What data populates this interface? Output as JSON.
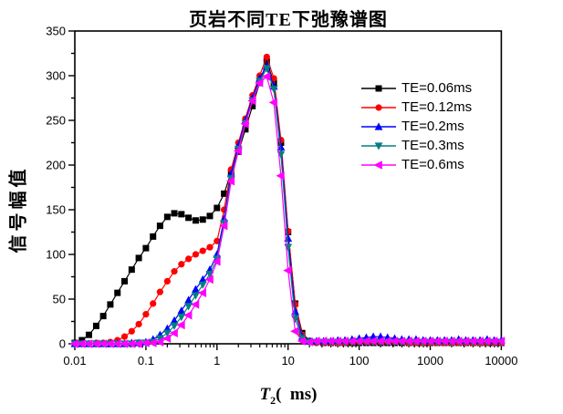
{
  "chart_data": {
    "type": "line",
    "title": "页岩不同TE下弛豫谱图",
    "ylabel": "信号幅值",
    "xlabel": {
      "t": "T",
      "sub": "2",
      "rest": "(  ms)"
    },
    "x_scale": "log",
    "xlim": [
      0.01,
      10000
    ],
    "ylim": [
      0,
      350
    ],
    "x_tick_labels": [
      "0.01",
      "0.1",
      "1",
      "10",
      "100",
      "1000",
      "10000"
    ],
    "x_ticks": [
      0.01,
      0.1,
      1,
      10,
      100,
      1000,
      10000
    ],
    "y_tick_step": 50,
    "y_minor_step": 25,
    "grid": false,
    "legend_position": "inside-upper-right",
    "x": [
      0.01,
      0.0126,
      0.0158,
      0.02,
      0.0251,
      0.0316,
      0.0398,
      0.0501,
      0.0631,
      0.0794,
      0.1,
      0.126,
      0.158,
      0.2,
      0.251,
      0.316,
      0.398,
      0.501,
      0.631,
      0.794,
      1,
      1.26,
      1.58,
      2,
      2.51,
      3.16,
      3.98,
      5.01,
      6.31,
      7.94,
      10,
      12.6,
      15.8,
      20,
      25.1,
      31.6,
      39.8,
      50.1,
      63.1,
      79.4,
      100,
      126,
      158,
      200,
      251,
      316,
      398,
      501,
      631,
      794,
      1000,
      1259,
      1585,
      1995,
      2512,
      3162,
      3981,
      5012,
      6310,
      7943,
      10000
    ],
    "series": [
      {
        "name": "TE=0.06ms",
        "color": "#000000",
        "marker": "square",
        "values": [
          1,
          4,
          10,
          20,
          31,
          44,
          57,
          70,
          83,
          96,
          107,
          120,
          132,
          142,
          146,
          145,
          141,
          138,
          139,
          143,
          152,
          168,
          192,
          215,
          240,
          266,
          292,
          316,
          292,
          225,
          125,
          45,
          12,
          3,
          2,
          1,
          1,
          1,
          1,
          1,
          1,
          1,
          1,
          1,
          1,
          1,
          1,
          1,
          1,
          1,
          1,
          1,
          1,
          1,
          1,
          1,
          1,
          1,
          1,
          1,
          1
        ]
      },
      {
        "name": "TE=0.12ms",
        "color": "#ff0000",
        "marker": "circle",
        "values": [
          0,
          0,
          0,
          1,
          1,
          2,
          4,
          8,
          14,
          22,
          33,
          45,
          58,
          70,
          81,
          89,
          95,
          100,
          104,
          108,
          115,
          150,
          195,
          225,
          252,
          278,
          300,
          321,
          297,
          228,
          126,
          44,
          10,
          2,
          1,
          1,
          1,
          1,
          1,
          2,
          2,
          2,
          2,
          2,
          2,
          2,
          2,
          1,
          1,
          1,
          1,
          1,
          1,
          1,
          1,
          1,
          1,
          1,
          1,
          1,
          1
        ]
      },
      {
        "name": "TE=0.2ms",
        "color": "#0000ff",
        "marker": "triangle-up",
        "values": [
          0,
          0,
          0,
          0,
          0,
          0,
          0,
          0,
          1,
          1,
          2,
          5,
          10,
          17,
          26,
          37,
          49,
          61,
          72,
          83,
          100,
          140,
          190,
          222,
          250,
          275,
          297,
          311,
          288,
          220,
          118,
          36,
          8,
          3,
          3,
          3,
          3,
          4,
          4,
          5,
          6,
          7,
          8,
          8,
          7,
          6,
          5,
          5,
          5,
          4,
          4,
          4,
          4,
          4,
          5,
          4,
          4,
          4,
          5,
          4,
          4
        ]
      },
      {
        "name": "TE=0.3ms",
        "color": "#008080",
        "marker": "triangle-down",
        "values": [
          0,
          0,
          0,
          0,
          0,
          0,
          0,
          0,
          0,
          1,
          1,
          2,
          6,
          12,
          20,
          30,
          42,
          54,
          66,
          78,
          95,
          135,
          185,
          218,
          247,
          272,
          294,
          308,
          285,
          212,
          108,
          28,
          6,
          2,
          2,
          2,
          2,
          2,
          2,
          2,
          2,
          2,
          2,
          2,
          2,
          2,
          2,
          2,
          2,
          2,
          2,
          2,
          2,
          2,
          2,
          2,
          2,
          2,
          2,
          2,
          2
        ]
      },
      {
        "name": "TE=0.6ms",
        "color": "#ff00ff",
        "marker": "triangle-left",
        "values": [
          0,
          0,
          0,
          0,
          0,
          0,
          0,
          0,
          0,
          0,
          1,
          1,
          2,
          6,
          12,
          21,
          32,
          44,
          57,
          72,
          92,
          132,
          182,
          216,
          246,
          272,
          292,
          299,
          270,
          188,
          82,
          14,
          3,
          2,
          3,
          3,
          3,
          3,
          3,
          3,
          3,
          3,
          3,
          3,
          3,
          3,
          3,
          3,
          3,
          3,
          3,
          3,
          3,
          3,
          3,
          3,
          3,
          3,
          3,
          3,
          3
        ]
      }
    ]
  },
  "colors": {
    "background": "#ffffff",
    "axis": "#000000"
  }
}
